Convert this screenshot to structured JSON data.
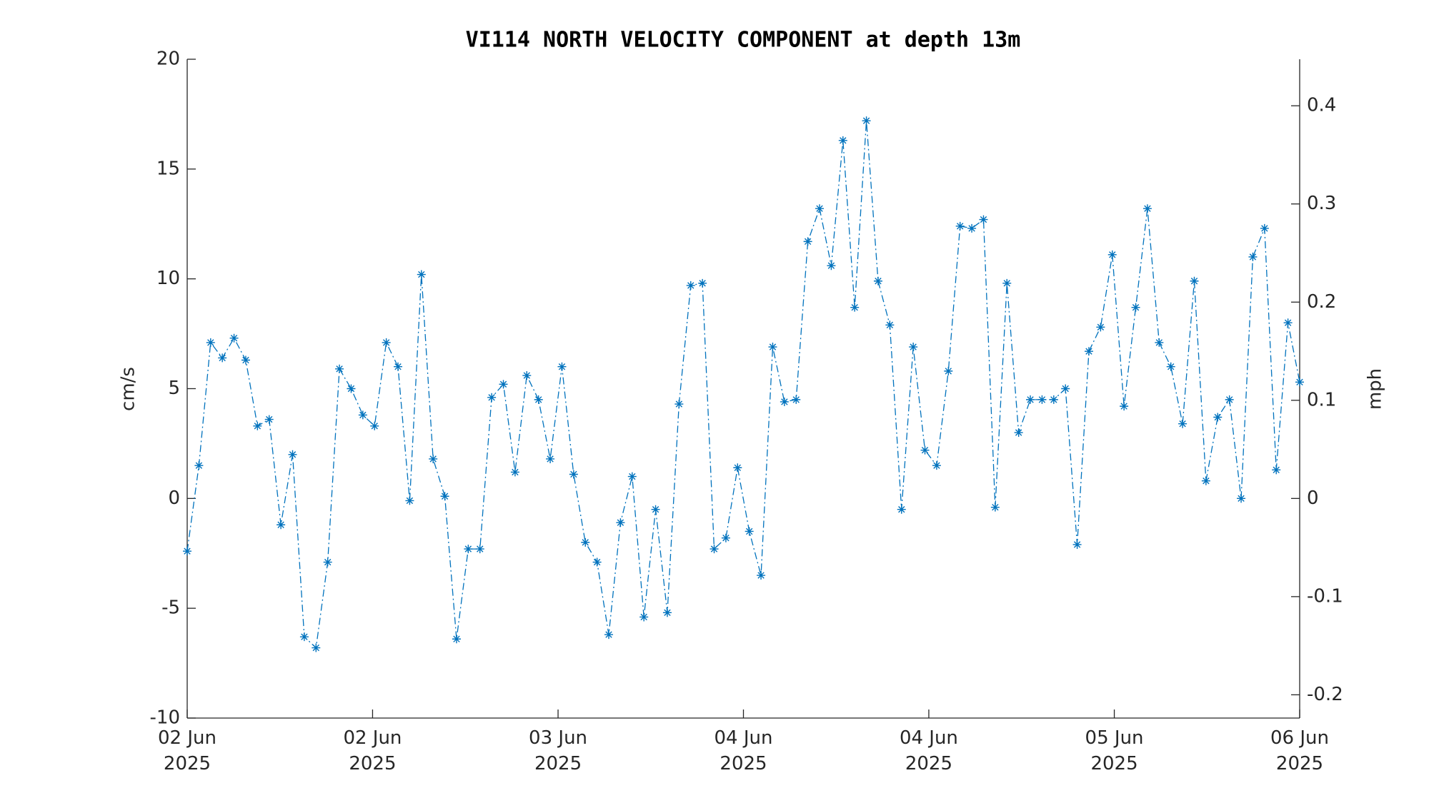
{
  "chart_data": {
    "type": "line",
    "title": "VI114 NORTH VELOCITY COMPONENT at depth 13m",
    "y_label": "cm/s",
    "y2_label": "mph",
    "categories": [
      null,
      null,
      null,
      null,
      null,
      null,
      null,
      null,
      null,
      null,
      null,
      null,
      null,
      null,
      null,
      null,
      null,
      null,
      null,
      null,
      null,
      null,
      null,
      null,
      null,
      null,
      null,
      null,
      null,
      null,
      null,
      null,
      null,
      null,
      null,
      null,
      null,
      null,
      null,
      null,
      null,
      null,
      null,
      null,
      null,
      null,
      null,
      null,
      null,
      null,
      null,
      null,
      null,
      null,
      null,
      null,
      null,
      null,
      null,
      null,
      null,
      null,
      null,
      null,
      null,
      null,
      null,
      null,
      null,
      null,
      null,
      null,
      null,
      null,
      null,
      null,
      null,
      null,
      null,
      null,
      null,
      null,
      null,
      null,
      null,
      null,
      null,
      null,
      null,
      null,
      null,
      null,
      null,
      null,
      null,
      null
    ],
    "series": [
      {
        "name": "north velocity",
        "color": "#0072bd",
        "values": [
          -2.4,
          1.5,
          7.1,
          6.4,
          7.3,
          6.3,
          3.3,
          3.6,
          -1.2,
          2.0,
          -6.3,
          -6.8,
          -2.9,
          5.9,
          5.0,
          3.8,
          3.3,
          7.1,
          6.0,
          -0.1,
          10.2,
          1.8,
          0.1,
          -6.4,
          -2.3,
          -2.3,
          4.6,
          5.2,
          1.2,
          5.6,
          4.5,
          1.8,
          6.0,
          1.1,
          -2.0,
          -2.9,
          -6.2,
          -1.1,
          1.0,
          -5.4,
          -0.5,
          -5.2,
          4.3,
          9.7,
          9.8,
          -2.3,
          -1.8,
          1.4,
          -1.5,
          -3.5,
          6.9,
          4.4,
          4.5,
          11.7,
          13.2,
          10.6,
          16.3,
          8.7,
          17.2,
          9.9,
          7.9,
          -0.5,
          6.9,
          2.2,
          1.5,
          5.8,
          12.4,
          12.3,
          12.7,
          -0.4,
          9.8,
          3.0,
          4.5,
          4.5,
          4.5,
          5.0,
          -2.1,
          6.7,
          7.8,
          11.1,
          4.2,
          8.7,
          13.2,
          7.1,
          6.0,
          3.4,
          9.9,
          0.8,
          3.7,
          4.5,
          0.0,
          11.0,
          12.3,
          1.3,
          8.0,
          5.3
        ]
      }
    ],
    "xlim": [
      0,
      95
    ],
    "xticks": [
      {
        "value": 0,
        "label": "02 Jun\n2025"
      },
      {
        "value": 15.83,
        "label": "02 Jun\n2025"
      },
      {
        "value": 31.67,
        "label": "03 Jun\n2025"
      },
      {
        "value": 47.5,
        "label": "04 Jun\n2025"
      },
      {
        "value": 63.33,
        "label": "04 Jun\n2025"
      },
      {
        "value": 79.17,
        "label": "05 Jun\n2025"
      },
      {
        "value": 95,
        "label": "06 Jun\n2025"
      }
    ],
    "ylim": [
      -10,
      20
    ],
    "yticks": [
      -10,
      -5,
      0,
      5,
      10,
      15,
      20
    ],
    "y2lim": [
      -0.2237,
      0.4474
    ],
    "y2ticks": [
      -0.2,
      -0.1,
      0,
      0.1,
      0.2,
      0.3,
      0.4
    ],
    "grid": false
  }
}
